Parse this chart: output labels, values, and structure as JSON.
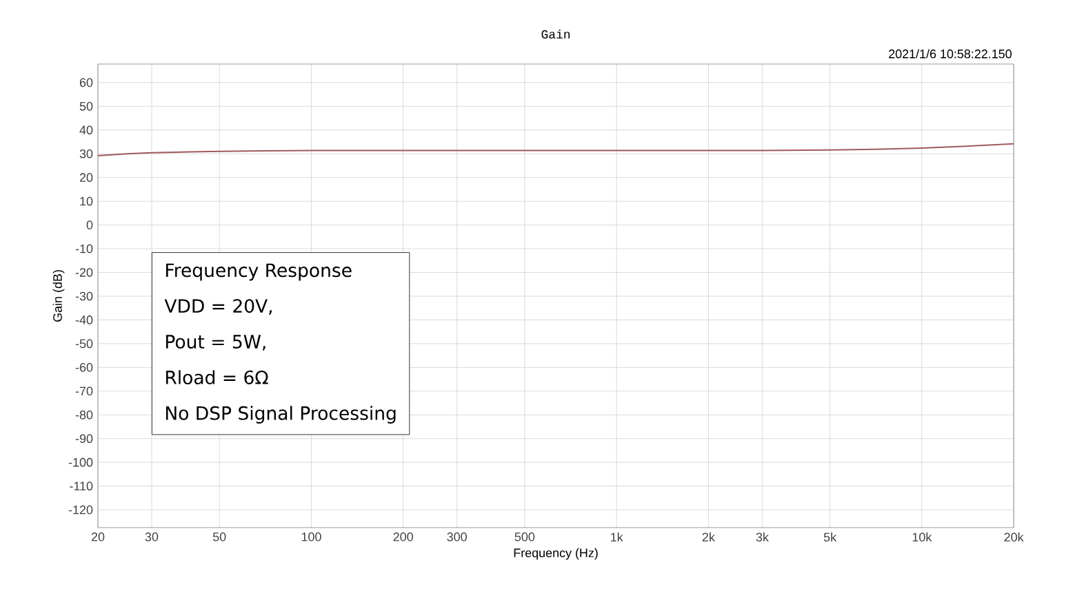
{
  "chart_data": {
    "type": "line",
    "title": "Gain",
    "xlabel": "Frequency (Hz)",
    "ylabel": "Gain (dB)",
    "annotations": [
      "2021/1/6 10:58:22.150",
      "Frequency Response",
      "VDD = 20V,",
      "Pout = 5W,",
      "Rload = 6Ω",
      "No DSP Signal Processing"
    ],
    "log": "x",
    "grid": true,
    "marker": "none",
    "line_style": "solid",
    "xlim": [
      20,
      20000
    ],
    "ylim": [
      -127.5,
      67.8
    ],
    "xticks": [
      20,
      30,
      50,
      100,
      200,
      300,
      500,
      {
        "value": 1000,
        "label": "1k"
      },
      {
        "value": 2000,
        "label": "2k"
      },
      {
        "value": 3000,
        "label": "3k"
      },
      {
        "value": 5000,
        "label": "5k"
      },
      {
        "value": 10000,
        "label": "10k"
      },
      {
        "value": 20000,
        "label": "20k"
      }
    ],
    "yticks": [
      -120,
      -110,
      -100,
      -90,
      -80,
      -70,
      -60,
      -50,
      -40,
      -30,
      -20,
      -10,
      0,
      10,
      20,
      30,
      40,
      50,
      60
    ],
    "series": [
      {
        "color": "#a0585c",
        "x": [
          20,
          25,
          30,
          40,
          50,
          70,
          100,
          200,
          500,
          1000,
          2000,
          3000,
          5000,
          7000,
          10000,
          14000,
          20000
        ],
        "values": [
          29.2,
          30.0,
          30.4,
          30.8,
          31.0,
          31.2,
          31.4,
          31.4,
          31.4,
          31.4,
          31.4,
          31.4,
          31.6,
          31.9,
          32.4,
          33.2,
          34.2
        ]
      }
    ]
  }
}
